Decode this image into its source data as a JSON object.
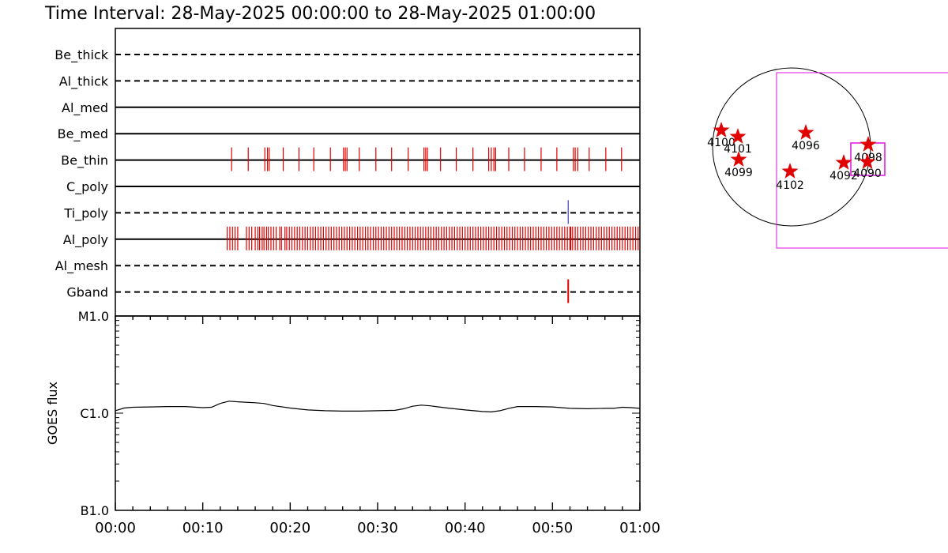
{
  "title": "Time Interval: 28-May-2025 00:00:00 to 28-May-2025 01:00:00",
  "chart_data": [
    {
      "type": "event-timeline",
      "time_range": [
        "00:00",
        "01:00"
      ],
      "channels": [
        {
          "name": "Be_thick",
          "line": "dashed",
          "events": []
        },
        {
          "name": "Al_thick",
          "line": "dashed",
          "events": []
        },
        {
          "name": "Al_med",
          "line": "solid",
          "events": []
        },
        {
          "name": "Be_med",
          "line": "solid",
          "events": []
        },
        {
          "name": "Be_thin",
          "line": "solid",
          "events": [
            13.3,
            15.2,
            17.1,
            17.4,
            17.6,
            19.2,
            21.0,
            22.7,
            24.6,
            26.1,
            26.3,
            26.5,
            27.9,
            29.8,
            31.6,
            33.5,
            35.3,
            35.5,
            35.7,
            37.2,
            39.0,
            40.9,
            42.7,
            43.0,
            43.3,
            43.5,
            45.0,
            46.8,
            48.7,
            50.5,
            52.4,
            52.6,
            52.9,
            54.2,
            56.1,
            57.9
          ]
        },
        {
          "name": "C_poly",
          "line": "solid",
          "events": []
        },
        {
          "name": "Ti_poly",
          "line": "dashed",
          "events": [
            51.8
          ],
          "event_color": "#4040b0"
        },
        {
          "name": "Al_poly",
          "line": "solid",
          "events": [
            12.8,
            13.1,
            13.4,
            13.7,
            14.0,
            15.0,
            15.3,
            15.6,
            16.0,
            16.3,
            16.5,
            16.8,
            17.0,
            17.3,
            17.5,
            17.8,
            18.1,
            18.4,
            18.8,
            19.0,
            19.4,
            19.6,
            19.9,
            20.2,
            20.5,
            20.8,
            21.1,
            21.4,
            21.7,
            22.0,
            22.3,
            22.6,
            22.9,
            23.2,
            23.5,
            23.8,
            24.1,
            24.4,
            24.7,
            25.0,
            25.3,
            25.6,
            25.9,
            26.2,
            26.5,
            26.8,
            27.1,
            27.4,
            27.7,
            28.0,
            28.3,
            28.6,
            28.9,
            29.2,
            29.5,
            29.8,
            30.1,
            30.4,
            30.7,
            31.0,
            31.3,
            31.6,
            31.9,
            32.2,
            32.5,
            32.8,
            33.1,
            33.4,
            33.7,
            34.0,
            34.3,
            34.6,
            34.9,
            35.2,
            35.5,
            35.8,
            36.1,
            36.4,
            36.7,
            37.0,
            37.3,
            37.6,
            37.9,
            38.2,
            38.5,
            38.8,
            39.1,
            39.4,
            39.7,
            40.0,
            40.3,
            40.6,
            40.9,
            41.2,
            41.5,
            41.8,
            42.1,
            42.4,
            42.7,
            43.0,
            43.3,
            43.6,
            43.9,
            44.2,
            44.5,
            44.8,
            45.1,
            45.4,
            45.7,
            46.0,
            46.3,
            46.6,
            46.9,
            47.2,
            47.5,
            47.8,
            48.1,
            48.4,
            48.7,
            49.0,
            49.3,
            49.6,
            49.9,
            50.2,
            50.5,
            50.8,
            51.1,
            51.4,
            51.7,
            52.0,
            52.1,
            52.3,
            52.6,
            52.9,
            53.2,
            53.5,
            53.8,
            54.1,
            54.4,
            54.7,
            55.0,
            55.3,
            55.6,
            55.9,
            56.2,
            56.5,
            56.8,
            57.1,
            57.4,
            57.7,
            58.0,
            58.3,
            58.6,
            58.9,
            59.2,
            59.5,
            59.8
          ]
        },
        {
          "name": "Al_mesh",
          "line": "dashed",
          "events": []
        },
        {
          "name": "Gband",
          "line": "dashed",
          "events": [
            51.8
          ]
        }
      ]
    },
    {
      "type": "line",
      "ylabel": "GOES flux",
      "y_scale": "log",
      "y_ticks": [
        "M1.0",
        "C1.0",
        "B1.0"
      ],
      "ylim": [
        1e-07,
        1e-05
      ],
      "x_ticks": [
        "00:00",
        "00:10",
        "00:20",
        "00:30",
        "00:40",
        "00:50",
        "01:00"
      ],
      "x": [
        0,
        1,
        2,
        4,
        6,
        8,
        10,
        11,
        12,
        13,
        14,
        16,
        17,
        18,
        20,
        22,
        24,
        26,
        28,
        30,
        32,
        33,
        34,
        35,
        36,
        37,
        38,
        40,
        42,
        43,
        44,
        45,
        46,
        48,
        50,
        52,
        54,
        56,
        57,
        58,
        59,
        60
      ],
      "values": [
        1.06e-06,
        1.13e-06,
        1.15e-06,
        1.16e-06,
        1.17e-06,
        1.17e-06,
        1.14e-06,
        1.15e-06,
        1.26e-06,
        1.33e-06,
        1.31e-06,
        1.28e-06,
        1.26e-06,
        1.2e-06,
        1.13e-06,
        1.08e-06,
        1.06e-06,
        1.05e-06,
        1.05e-06,
        1.06e-06,
        1.07e-06,
        1.11e-06,
        1.18e-06,
        1.21e-06,
        1.19e-06,
        1.16e-06,
        1.13e-06,
        1.08e-06,
        1.04e-06,
        1.03e-06,
        1.06e-06,
        1.12e-06,
        1.17e-06,
        1.17e-06,
        1.16e-06,
        1.12e-06,
        1.11e-06,
        1.12e-06,
        1.12e-06,
        1.15e-06,
        1.14e-06,
        1.12e-06
      ]
    },
    {
      "type": "scatter",
      "markers": [
        {
          "label": "4100",
          "x": -0.89,
          "y": 0.21
        },
        {
          "label": "4101",
          "x": -0.68,
          "y": 0.13
        },
        {
          "label": "4099",
          "x": -0.67,
          "y": -0.16
        },
        {
          "label": "4096",
          "x": 0.18,
          "y": 0.18
        },
        {
          "label": "4102",
          "x": -0.02,
          "y": -0.31
        },
        {
          "label": "4092",
          "x": 0.66,
          "y": -0.2
        },
        {
          "label": "4098",
          "x": 0.97,
          "y": 0.03
        },
        {
          "label": "4090",
          "x": 0.96,
          "y": -0.19
        }
      ]
    }
  ]
}
